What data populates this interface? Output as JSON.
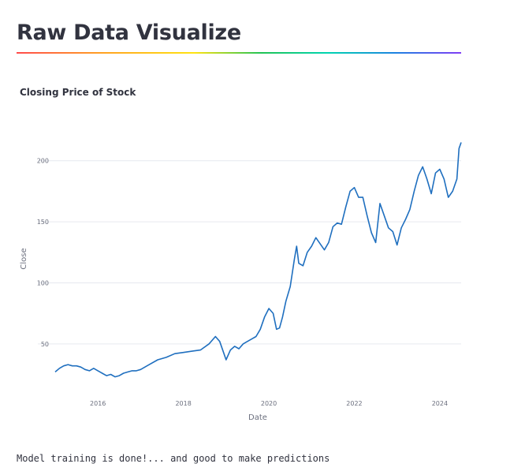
{
  "header": {
    "title": "Raw Data Visualize"
  },
  "status": {
    "message": "Model training is done!... and good to make predictions"
  },
  "colors": {
    "line": "#1f6fbf",
    "grid": "#e6e9ef",
    "text": "#31333f"
  },
  "chart_data": {
    "type": "line",
    "title": "Closing Price of Stock",
    "xlabel": "Date",
    "ylabel": "Close",
    "x_ticks": [
      "2016",
      "2018",
      "2020",
      "2022",
      "2024"
    ],
    "y_ticks": [
      50,
      100,
      150,
      200
    ],
    "xlim": [
      2015.0,
      2024.5
    ],
    "ylim": [
      15,
      225
    ],
    "grid": "horizontal",
    "legend": "none",
    "series": [
      {
        "x": [
          2015.0,
          2015.1,
          2015.2,
          2015.3,
          2015.4,
          2015.5,
          2015.6,
          2015.7,
          2015.8,
          2015.9,
          2016.0,
          2016.1,
          2016.2,
          2016.3,
          2016.4,
          2016.5,
          2016.6,
          2016.7,
          2016.8,
          2016.9,
          2017.0,
          2017.2,
          2017.4,
          2017.6,
          2017.8,
          2018.0,
          2018.2,
          2018.4,
          2018.6,
          2018.75,
          2018.85,
          2018.95,
          2019.0,
          2019.1,
          2019.2,
          2019.3,
          2019.4,
          2019.5,
          2019.6,
          2019.7,
          2019.8,
          2019.9,
          2020.0,
          2020.1,
          2020.18,
          2020.25,
          2020.32,
          2020.4,
          2020.5,
          2020.6,
          2020.65,
          2020.7,
          2020.8,
          2020.9,
          2021.0,
          2021.1,
          2021.2,
          2021.3,
          2021.4,
          2021.5,
          2021.6,
          2021.7,
          2021.8,
          2021.9,
          2022.0,
          2022.1,
          2022.2,
          2022.3,
          2022.4,
          2022.5,
          2022.6,
          2022.7,
          2022.8,
          2022.9,
          2023.0,
          2023.1,
          2023.2,
          2023.3,
          2023.4,
          2023.5,
          2023.6,
          2023.7,
          2023.8,
          2023.9,
          2024.0,
          2024.1,
          2024.2,
          2024.3,
          2024.4,
          2024.45,
          2024.5
        ],
        "values": [
          27,
          30,
          32,
          33,
          32,
          32,
          31,
          29,
          28,
          30,
          28,
          26,
          24,
          25,
          23,
          24,
          26,
          27,
          28,
          28,
          29,
          33,
          37,
          39,
          42,
          43,
          44,
          45,
          50,
          56,
          52,
          42,
          37,
          45,
          48,
          46,
          50,
          52,
          54,
          56,
          62,
          72,
          79,
          75,
          62,
          63,
          72,
          85,
          97,
          120,
          130,
          116,
          114,
          125,
          130,
          137,
          132,
          127,
          133,
          146,
          149,
          148,
          162,
          175,
          178,
          170,
          170,
          155,
          141,
          133,
          165,
          155,
          145,
          142,
          131,
          145,
          152,
          160,
          175,
          188,
          195,
          185,
          173,
          190,
          193,
          185,
          170,
          175,
          185,
          210,
          215
        ]
      }
    ]
  }
}
